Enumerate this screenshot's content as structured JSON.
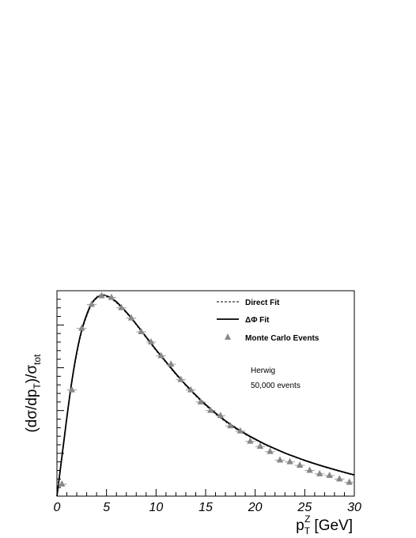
{
  "chart_data": {
    "type": "line",
    "xlabel_main": "p",
    "xlabel_sup": "Z",
    "xlabel_sub": "T",
    "xlabel_unit": "[GeV]",
    "ylabel_parts": {
      "open": "(dσ/dp",
      "sub1": "T",
      "mid": ")/σ",
      "sub2": "tot"
    },
    "xlim": [
      0,
      30
    ],
    "ylim": [
      0,
      1.2
    ],
    "x_ticks": [
      0,
      5,
      10,
      15,
      20,
      25,
      30
    ],
    "x_tick_labels": [
      "0",
      "5",
      "10",
      "15",
      "20",
      "25",
      "30"
    ],
    "y_tick_labels_shown": false,
    "legend": {
      "position": "top-right",
      "entries": [
        {
          "label": "Direct Fit",
          "style": "dashed-line"
        },
        {
          "label": "ΔΦ Fit",
          "style": "solid-line"
        },
        {
          "label": "Monte Carlo Events",
          "style": "triangle-marker"
        }
      ]
    },
    "annotations": [
      "Herwig",
      "50,000 events"
    ],
    "series": [
      {
        "name": "Direct Fit",
        "style": "dashed",
        "x": [
          0,
          0.5,
          1,
          1.5,
          2,
          2.5,
          3,
          3.5,
          4,
          4.5,
          5,
          5.5,
          6,
          7,
          8,
          9,
          10,
          11,
          12,
          13,
          14,
          15,
          16,
          17,
          18,
          19,
          20,
          21,
          22,
          23,
          24,
          25,
          26,
          27,
          28,
          29,
          30
        ],
        "y": [
          0.0,
          0.22,
          0.45,
          0.66,
          0.83,
          0.96,
          1.05,
          1.12,
          1.155,
          1.17,
          1.165,
          1.15,
          1.13,
          1.07,
          1.0,
          0.925,
          0.85,
          0.78,
          0.71,
          0.645,
          0.585,
          0.53,
          0.48,
          0.435,
          0.395,
          0.36,
          0.33,
          0.3,
          0.275,
          0.25,
          0.228,
          0.207,
          0.188,
          0.17,
          0.153,
          0.137,
          0.122
        ]
      },
      {
        "name": "ΔΦ Fit",
        "style": "solid",
        "x": [
          0,
          0.5,
          1,
          1.5,
          2,
          2.5,
          3,
          3.5,
          4,
          4.5,
          5,
          5.5,
          6,
          7,
          8,
          9,
          10,
          11,
          12,
          13,
          14,
          15,
          16,
          17,
          18,
          19,
          20,
          21,
          22,
          23,
          24,
          25,
          26,
          27,
          28,
          29,
          30
        ],
        "y": [
          0.0,
          0.23,
          0.46,
          0.67,
          0.84,
          0.97,
          1.06,
          1.125,
          1.16,
          1.175,
          1.17,
          1.155,
          1.135,
          1.075,
          1.005,
          0.93,
          0.855,
          0.785,
          0.715,
          0.65,
          0.59,
          0.535,
          0.485,
          0.44,
          0.4,
          0.365,
          0.333,
          0.303,
          0.277,
          0.252,
          0.23,
          0.209,
          0.19,
          0.172,
          0.155,
          0.139,
          0.124
        ]
      },
      {
        "name": "Monte Carlo Events",
        "style": "markers",
        "x": [
          0.5,
          1.5,
          2.5,
          3.5,
          4.5,
          5.5,
          6.5,
          7.5,
          8.5,
          9.5,
          10.5,
          11.5,
          12.5,
          13.5,
          14.5,
          15.5,
          16.5,
          17.5,
          18.5,
          19.5,
          20.5,
          21.5,
          22.5,
          23.5,
          24.5,
          25.5,
          26.5,
          27.5,
          28.5,
          29.5
        ],
        "y": [
          0.07,
          0.62,
          0.98,
          1.12,
          1.17,
          1.16,
          1.1,
          1.04,
          0.96,
          0.9,
          0.82,
          0.77,
          0.68,
          0.62,
          0.55,
          0.5,
          0.47,
          0.41,
          0.38,
          0.32,
          0.29,
          0.26,
          0.21,
          0.2,
          0.18,
          0.15,
          0.13,
          0.12,
          0.1,
          0.08
        ]
      }
    ]
  }
}
